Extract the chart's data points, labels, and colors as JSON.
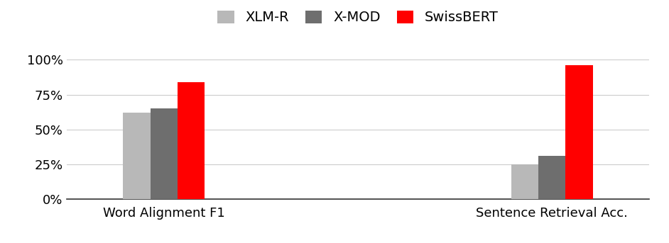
{
  "categories": [
    "Word Alignment F1",
    "Sentence Retrieval Acc."
  ],
  "series": {
    "XLM-R": [
      0.62,
      0.25
    ],
    "X-MOD": [
      0.65,
      0.31
    ],
    "SwissBERT": [
      0.84,
      0.96
    ]
  },
  "colors": {
    "XLM-R": "#b8b8b8",
    "X-MOD": "#6e6e6e",
    "SwissBERT": "#ff0000"
  },
  "legend_labels": [
    "XLM-R",
    "X-MOD",
    "SwissBERT"
  ],
  "ylim": [
    0,
    1.08
  ],
  "yticks": [
    0,
    0.25,
    0.5,
    0.75,
    1.0
  ],
  "ytick_labels": [
    "0%",
    "25%",
    "50%",
    "75%",
    "100%"
  ],
  "background_color": "#ffffff",
  "bar_width": 0.14,
  "group_centers": [
    1.0,
    3.0
  ],
  "legend_fontsize": 14,
  "tick_fontsize": 13,
  "xlabel_fontsize": 13,
  "grid_color": "#cccccc",
  "grid_linewidth": 0.8
}
